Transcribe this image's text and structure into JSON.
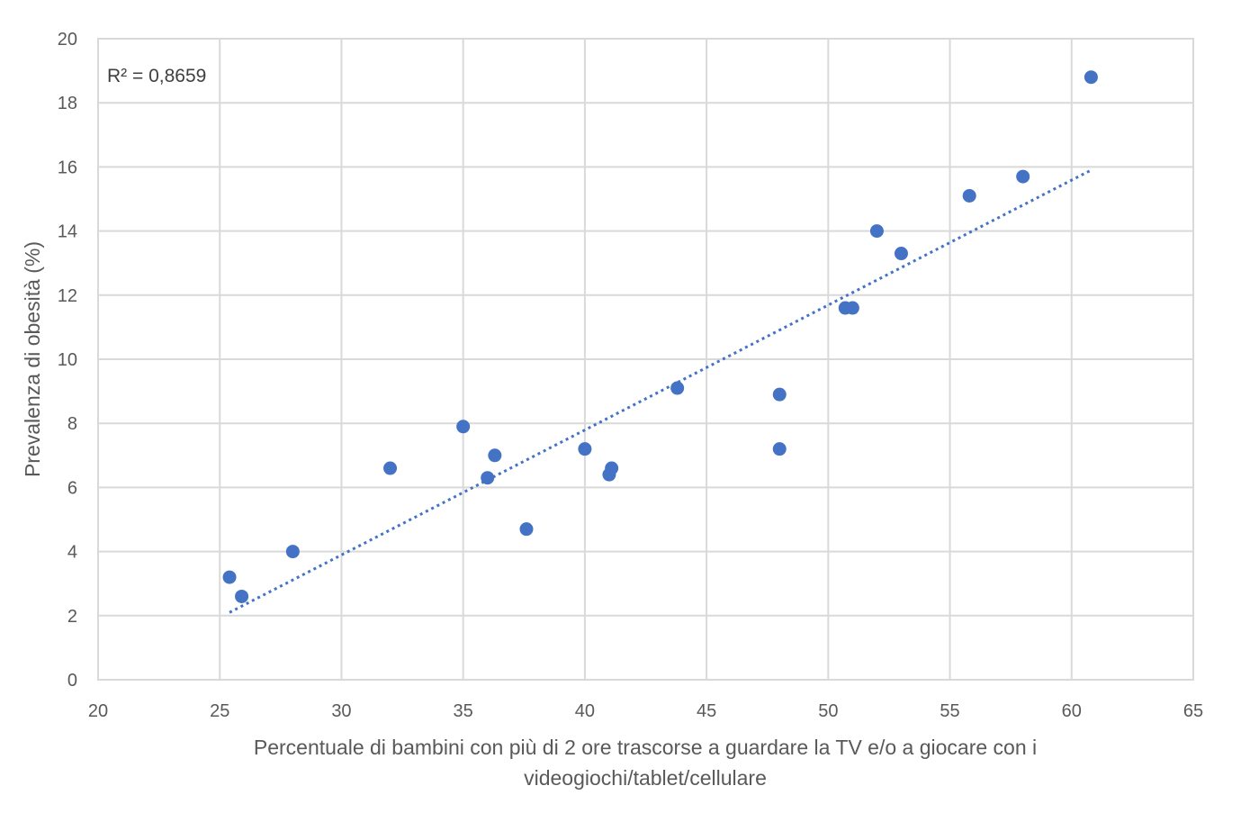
{
  "chart_data": {
    "type": "scatter",
    "xlabel_lines": [
      "Percentuale di bambini con più di 2 ore trascorse a guardare la TV e/o a giocare con i",
      "videogiochi/tablet/cellulare"
    ],
    "ylabel": "Prevalenza di obesità (%)",
    "xlim": [
      20,
      65
    ],
    "ylim": [
      0,
      20
    ],
    "x_ticks": [
      "20",
      "25",
      "30",
      "35",
      "40",
      "45",
      "50",
      "55",
      "60",
      "65"
    ],
    "y_ticks": [
      "0",
      "2",
      "4",
      "6",
      "8",
      "10",
      "12",
      "14",
      "16",
      "18",
      "20"
    ],
    "grid": true,
    "annotation": "R² = 0,8659",
    "colors": {
      "points": "#4472c4",
      "trendline": "#4472c4",
      "grid": "#d9d9d9"
    },
    "points": [
      {
        "x": 25.4,
        "y": 3.2
      },
      {
        "x": 25.9,
        "y": 2.6
      },
      {
        "x": 28.0,
        "y": 4.0
      },
      {
        "x": 32.0,
        "y": 6.6
      },
      {
        "x": 35.0,
        "y": 7.9
      },
      {
        "x": 36.0,
        "y": 6.3
      },
      {
        "x": 36.3,
        "y": 7.0
      },
      {
        "x": 37.6,
        "y": 4.7
      },
      {
        "x": 40.0,
        "y": 7.2
      },
      {
        "x": 41.0,
        "y": 6.4
      },
      {
        "x": 41.1,
        "y": 6.6
      },
      {
        "x": 43.8,
        "y": 9.1
      },
      {
        "x": 48.0,
        "y": 8.9
      },
      {
        "x": 48.0,
        "y": 7.2
      },
      {
        "x": 50.7,
        "y": 11.6
      },
      {
        "x": 51.0,
        "y": 11.6
      },
      {
        "x": 52.0,
        "y": 14.0
      },
      {
        "x": 53.0,
        "y": 13.3
      },
      {
        "x": 55.8,
        "y": 15.1
      },
      {
        "x": 58.0,
        "y": 15.7
      },
      {
        "x": 60.8,
        "y": 18.8
      }
    ],
    "trendline": {
      "type": "linear",
      "style": "dotted",
      "x": [
        25.4,
        60.8
      ],
      "y": [
        2.1,
        15.9
      ]
    }
  }
}
